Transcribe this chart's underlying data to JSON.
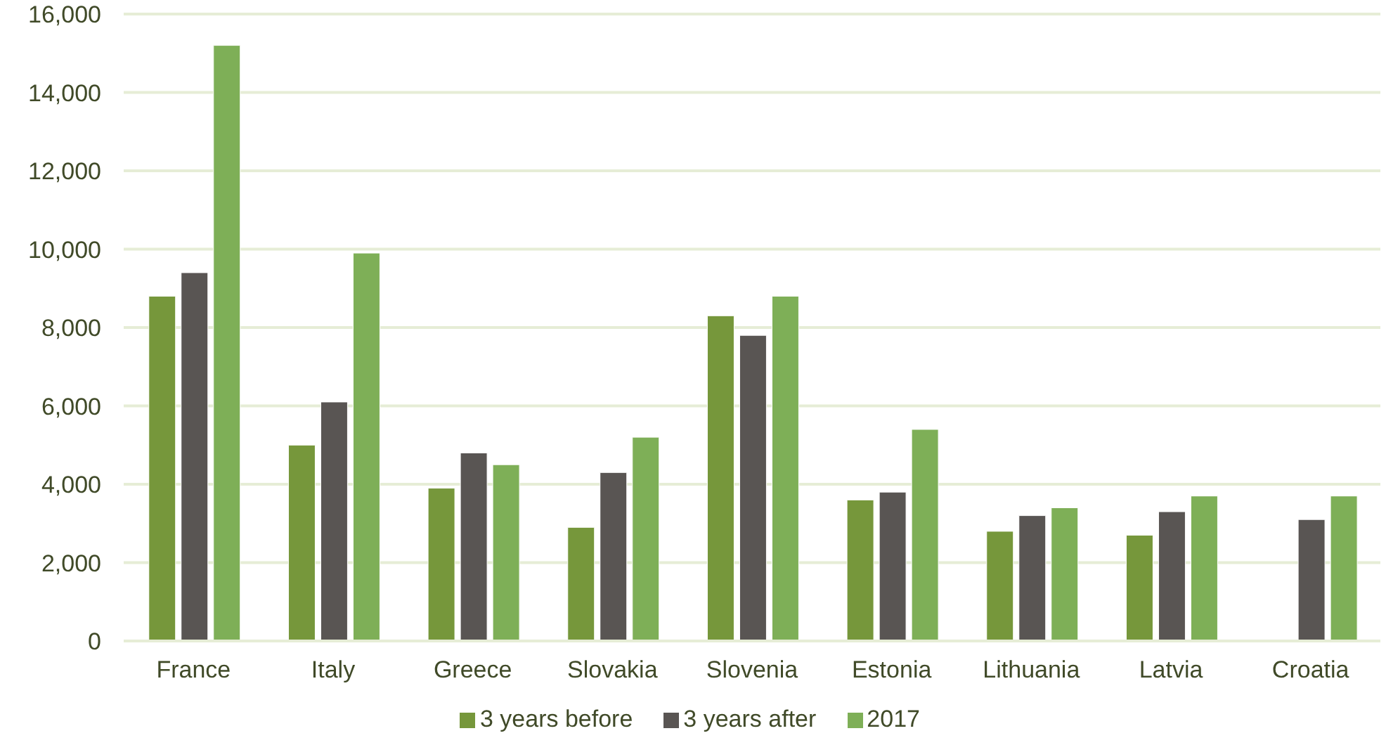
{
  "chart_data": {
    "type": "bar",
    "categories": [
      "France",
      "Italy",
      "Greece",
      "Slovakia",
      "Slovenia",
      "Estonia",
      "Lithuania",
      "Latvia",
      "Croatia"
    ],
    "series": [
      {
        "name": "3 years before",
        "color": "#76973b",
        "values": [
          8800,
          5000,
          3900,
          2900,
          8300,
          3600,
          2800,
          2700,
          null
        ]
      },
      {
        "name": "3 years after",
        "color": "#595553",
        "values": [
          9400,
          6100,
          4800,
          4300,
          7800,
          3800,
          3200,
          3300,
          3100
        ]
      },
      {
        "name": "2017",
        "color": "#7eaf57",
        "values": [
          15200,
          9900,
          4500,
          5200,
          8800,
          5400,
          3400,
          3700,
          3700
        ]
      }
    ],
    "ylim": [
      0,
      16000
    ],
    "yticks": [
      0,
      {
        "value": 2000,
        "label": "2,000"
      },
      {
        "value": 4000,
        "label": "4,000"
      },
      {
        "value": 6000,
        "label": "6,000"
      },
      {
        "value": 8000,
        "label": "8,000"
      },
      {
        "value": 10000,
        "label": "10,000"
      },
      {
        "value": 12000,
        "label": "12,000"
      },
      {
        "value": 14000,
        "label": "14,000"
      },
      {
        "value": 16000,
        "label": "16,000"
      }
    ],
    "grid": "y",
    "legend": "bottom"
  }
}
